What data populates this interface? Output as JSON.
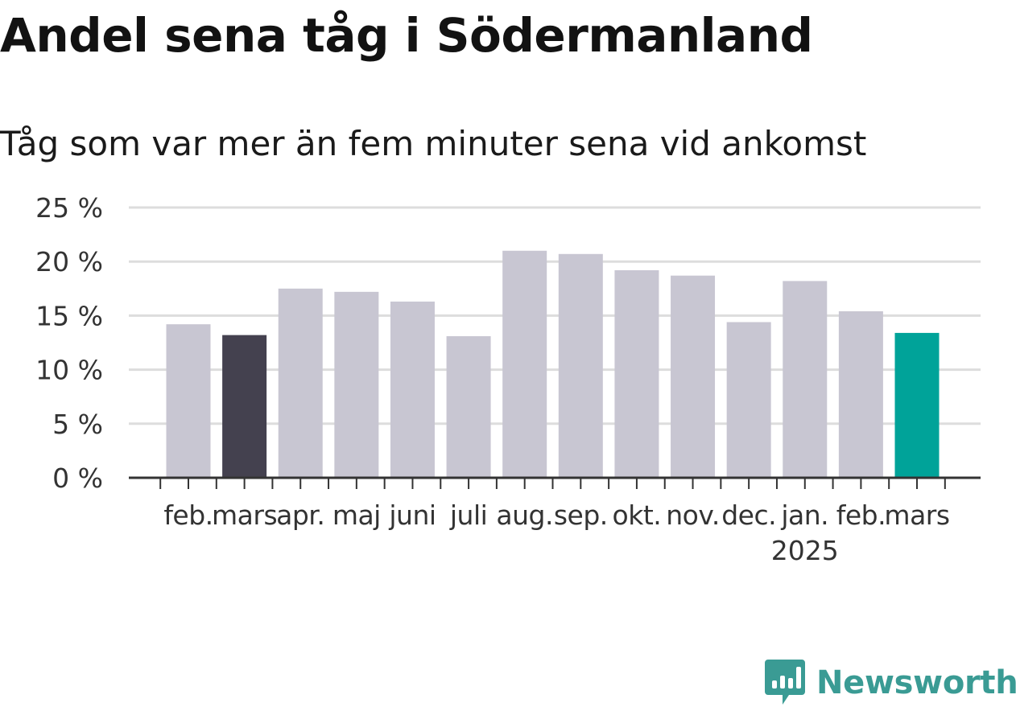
{
  "title": "Andel sena tåg i Södermanland",
  "subtitle": "Tåg som var mer än fem minuter sena vid ankomst",
  "brand": {
    "name": "Newsworthy",
    "color": "#3a9b94",
    "icon": "newsworthy-logo-icon"
  },
  "colors": {
    "default_bar": "#c8c6d2",
    "year_ago_bar": "#44414f",
    "latest_bar": "#00a399",
    "gridline": "#dddddd",
    "axis": "#333333",
    "tick_text": "#333333"
  },
  "chart_data": {
    "type": "bar",
    "title": "Andel sena tåg i Södermanland",
    "subtitle": "Tåg som var mer än fem minuter sena vid ankomst",
    "categories": [
      "feb.",
      "mars",
      "apr.",
      "maj",
      "juni",
      "juli",
      "aug.",
      "sep.",
      "okt.",
      "nov.",
      "dec.",
      "jan.",
      "feb.",
      "mars"
    ],
    "year_label": {
      "text": "2025",
      "under_category_index": 11
    },
    "values": [
      14.2,
      13.2,
      17.5,
      17.2,
      16.3,
      13.1,
      21.0,
      20.7,
      19.2,
      18.7,
      14.4,
      18.2,
      15.4,
      13.4
    ],
    "highlight": {
      "1": "year_ago_bar",
      "13": "latest_bar"
    },
    "ylim": [
      0,
      25
    ],
    "yticks": [
      0,
      5,
      10,
      15,
      20,
      25
    ],
    "ytick_labels": [
      "0 %",
      "5 %",
      "10 %",
      "15 %",
      "20 %",
      "25 %"
    ],
    "xlabel": "",
    "ylabel": "",
    "grid": true,
    "legend": "none"
  }
}
